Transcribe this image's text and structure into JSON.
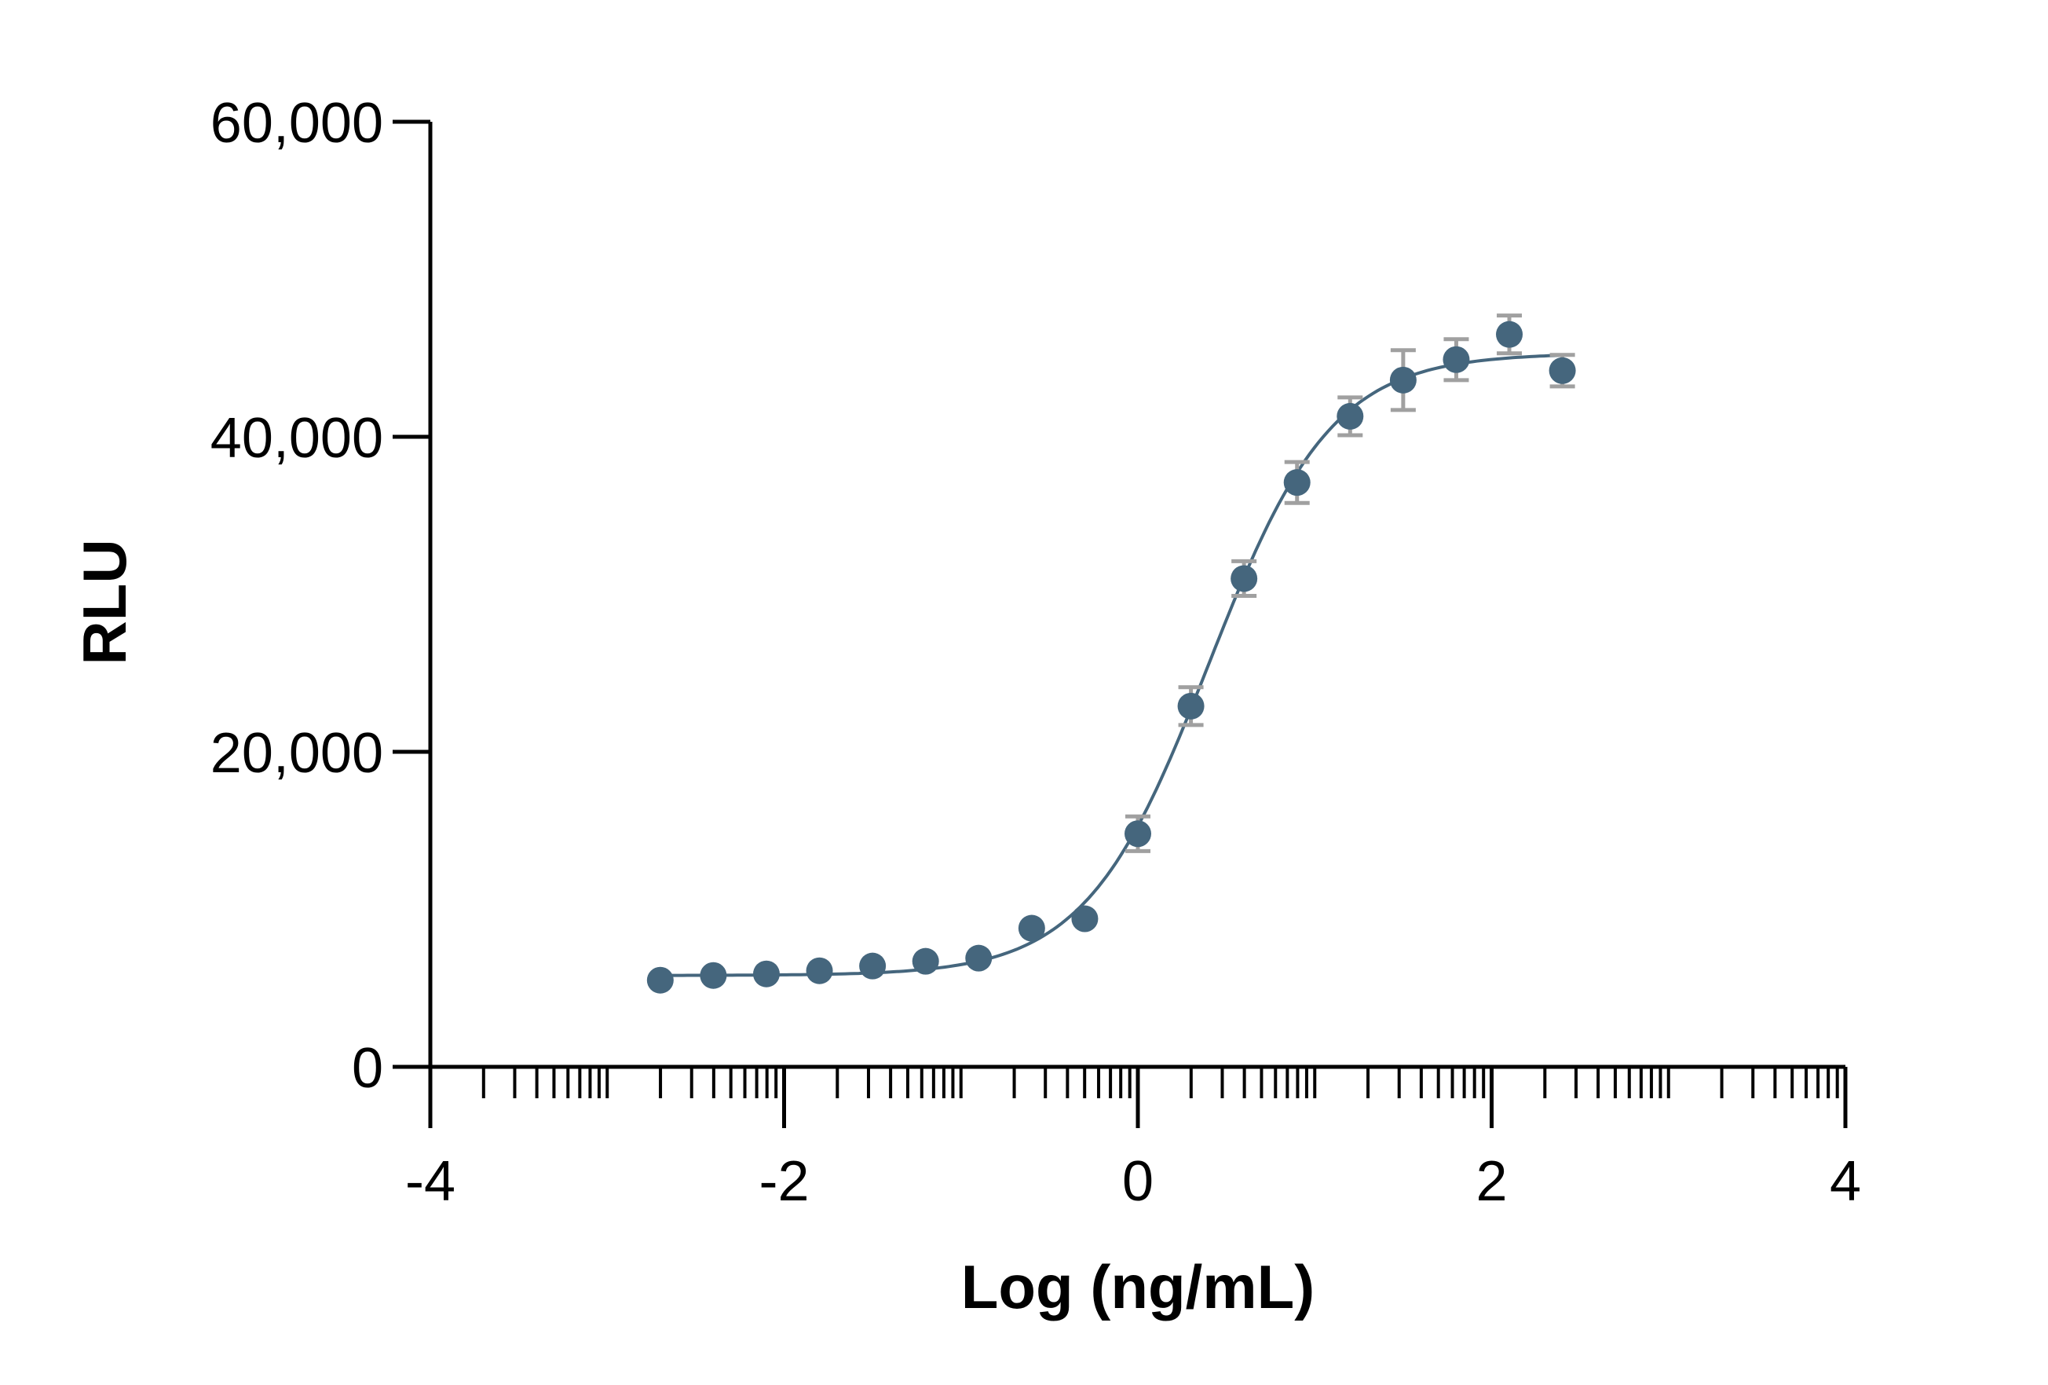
{
  "chart_data": {
    "type": "scatter",
    "xlabel": "Log (ng/mL)",
    "ylabel": "RLU",
    "xlim": [
      -4,
      4
    ],
    "ylim": [
      0,
      60000
    ],
    "x_ticks": [
      -4,
      -2,
      0,
      2,
      4
    ],
    "x_tick_labels": [
      "-4",
      "-2",
      "0",
      "2",
      "4"
    ],
    "x_minor_log_ticks": true,
    "y_ticks": [
      0,
      20000,
      40000,
      60000
    ],
    "y_tick_labels": [
      "0",
      "20,000",
      "40,000",
      "60,000"
    ],
    "grid": false,
    "legend": "none",
    "colors": {
      "series": "#45667d",
      "error_bars": "#a0a0a0",
      "axis": "#000000"
    },
    "series": [
      {
        "x": [
          -2.7,
          -2.4,
          -2.1,
          -1.8,
          -1.5,
          -1.2,
          -0.9,
          -0.6,
          -0.3,
          0.0,
          0.3,
          0.6,
          0.9,
          1.2,
          1.5,
          1.8,
          2.1,
          2.4
        ],
        "y": [
          5500,
          5800,
          5900,
          6100,
          6400,
          6700,
          6900,
          8800,
          9400,
          14800,
          22900,
          31000,
          37100,
          41300,
          43600,
          44900,
          46500,
          44200
        ],
        "error": [
          0,
          0,
          0,
          0,
          0,
          0,
          0,
          0,
          0,
          1100,
          1200,
          1100,
          1300,
          1200,
          1900,
          1300,
          1200,
          1000
        ],
        "fit": {
          "model": "4PL",
          "bottom": 5800,
          "top": 45300,
          "log_ec50": 0.4,
          "hill": 1.25,
          "x_range": [
            -2.7,
            2.4
          ]
        }
      }
    ]
  }
}
